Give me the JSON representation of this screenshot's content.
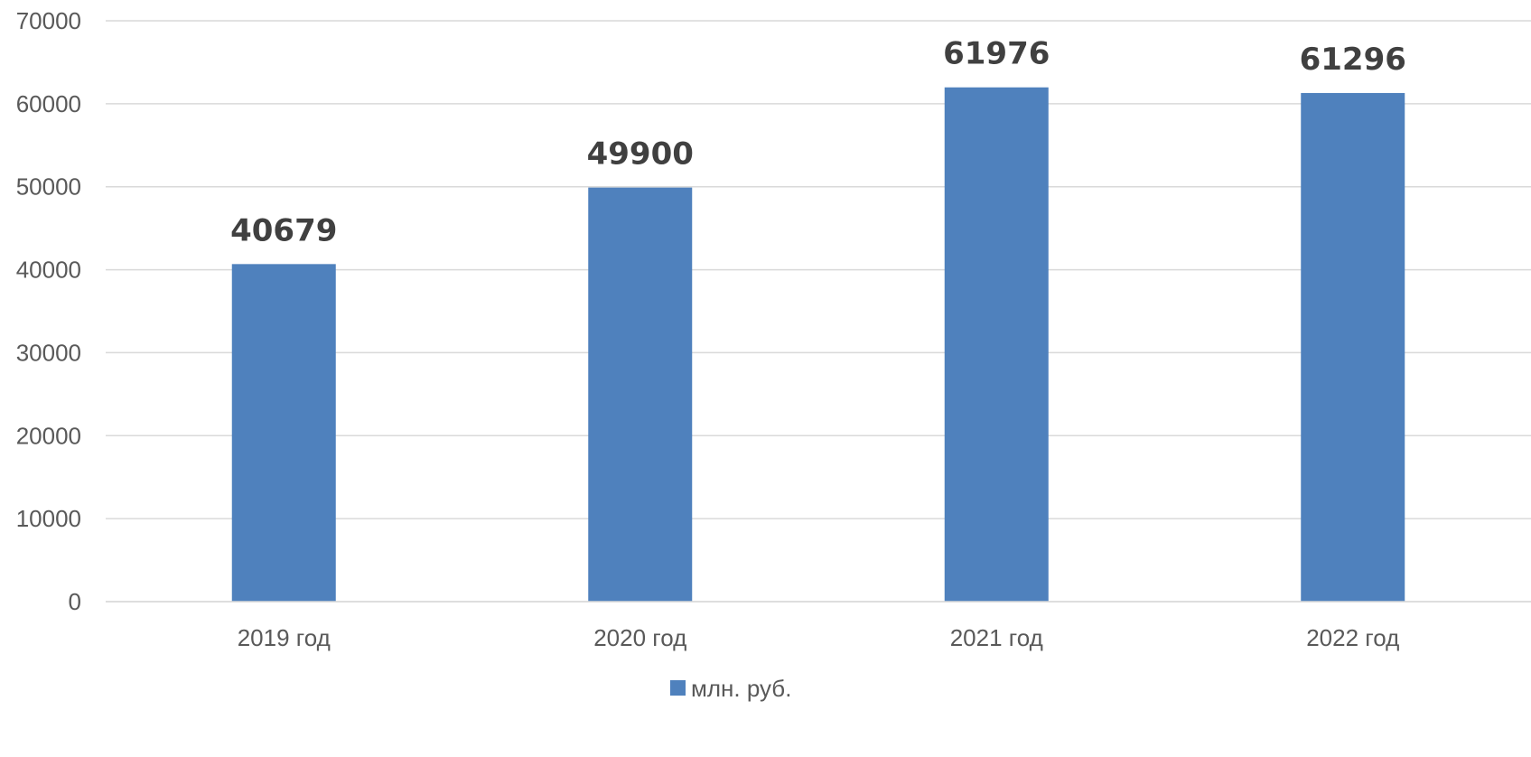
{
  "chart_data": {
    "type": "bar",
    "categories": [
      "2019 год",
      "2020 год",
      "2021 год",
      "2022 год"
    ],
    "series": [
      {
        "name": "млн. руб.",
        "values": [
          40679,
          49900,
          61976,
          61296
        ],
        "color": "#4F81BD"
      }
    ],
    "data_labels": [
      "40679",
      "49900",
      "61976",
      "61296"
    ],
    "y_ticks": [
      "0",
      "10000",
      "20000",
      "30000",
      "40000",
      "50000",
      "60000",
      "70000"
    ],
    "ylim": [
      0,
      70000
    ],
    "grid": true,
    "legend": {
      "position": "bottom"
    },
    "colors": {
      "bar": "#4F81BD",
      "grid": "#D9D9D9",
      "tick_text": "#595959",
      "data_label": "#404040"
    }
  }
}
